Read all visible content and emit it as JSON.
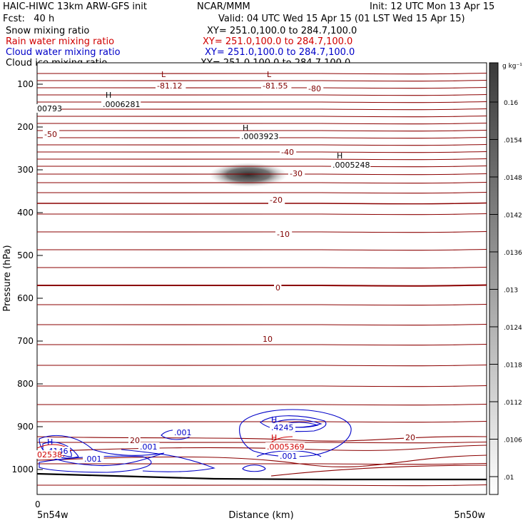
{
  "header": {
    "model": "HAIC-HIWC 13km ARW-GFS init",
    "org": "NCAR/MMM",
    "init": "Init: 12 UTC Mon 13 Apr 15",
    "fcst": "Fcst:   40 h",
    "valid": "Valid: 04 UTC Wed 15 Apr 15 (01 LST Wed 15 Apr 15)"
  },
  "fields": [
    {
      "name": "Snow mixing ratio",
      "xy": "XY= 251.0,100.0 to 284.7,100.0",
      "color": "#000000"
    },
    {
      "name": "Rain water mixing ratio",
      "xy": "XY= 251.0,100.0 to 284.7,100.0",
      "color": "#d00000"
    },
    {
      "name": "Cloud water mixing ratio",
      "xy": "XY= 251.0,100.0 to 284.7,100.0",
      "color": "#0000c8"
    },
    {
      "name": "Cloud ice mixing ratio",
      "xy": "XY= 251.0,100.0 to 284.7,100.0",
      "color": "#000000"
    }
  ],
  "chart_data": {
    "type": "contour",
    "ylabel": "Pressure (hPa)",
    "xlabel": "Distance (km)",
    "ylim": [
      1050,
      50
    ],
    "y_ticks": [
      100,
      200,
      300,
      400,
      500,
      600,
      700,
      800,
      900,
      1000
    ],
    "x_ticks": [
      "0"
    ],
    "x_endpoints": [
      "5n54w",
      "5n50w"
    ],
    "colorbar": {
      "unit": "g kg⁻¹",
      "ticks": [
        "0.16",
        ".0154",
        ".0148",
        ".0142",
        ".0136",
        ".013",
        ".0124",
        ".0118",
        ".0112",
        ".0106",
        ".01"
      ]
    },
    "temperature_contour_labels": [
      "-80",
      "-50",
      "-40",
      "-30",
      "-20",
      "-10",
      "0",
      "10",
      "20"
    ],
    "extrema": [
      {
        "type": "L",
        "value": "-81.12",
        "color": "#800000"
      },
      {
        "type": "L",
        "value": "-81.55",
        "color": "#800000"
      },
      {
        "type": "H",
        "value": ".0006281",
        "color": "#000000"
      },
      {
        "type": "H",
        "value": ".0003923",
        "color": "#000000"
      },
      {
        "type": "H",
        "value": ".0005248",
        "color": "#000000"
      },
      {
        "type": "value",
        "value": "00793",
        "color": "#000000"
      },
      {
        "type": "H",
        "value": ".4146",
        "color": "#0000c8"
      },
      {
        "type": "H",
        "value": ".4245",
        "color": "#0000c8"
      },
      {
        "type": "H",
        "value": ".0005369",
        "color": "#d00000"
      },
      {
        "type": "value",
        "value": "02538",
        "color": "#d00000"
      }
    ],
    "cloud_water_contour_labels": [
      ".001",
      ".001",
      ".001",
      ".001"
    ],
    "snow_max_pressure_hpa": 305
  }
}
